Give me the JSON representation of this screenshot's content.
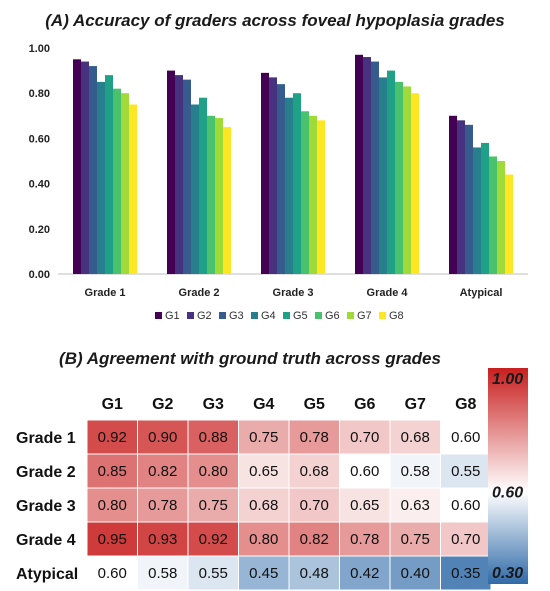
{
  "chart_data": [
    {
      "type": "bar",
      "title": "(A) Accuracy of graders across foveal hypoplasia grades",
      "xlabel": "",
      "ylabel": "",
      "ylim": [
        0,
        1
      ],
      "y_ticks": [
        "0.00",
        "0.20",
        "0.40",
        "0.60",
        "0.80",
        "1.00"
      ],
      "categories": [
        "Grade 1",
        "Grade 2",
        "Grade 3",
        "Grade 4",
        "Atypical"
      ],
      "legend_position": "bottom",
      "grid": false,
      "series": [
        {
          "name": "G1",
          "color": "#440154",
          "values": [
            0.95,
            0.9,
            0.89,
            0.97,
            0.7
          ]
        },
        {
          "name": "G2",
          "color": "#46327e",
          "values": [
            0.94,
            0.88,
            0.87,
            0.96,
            0.68
          ]
        },
        {
          "name": "G3",
          "color": "#365c8d",
          "values": [
            0.92,
            0.86,
            0.84,
            0.94,
            0.66
          ]
        },
        {
          "name": "G4",
          "color": "#277f8e",
          "values": [
            0.85,
            0.75,
            0.78,
            0.87,
            0.56
          ]
        },
        {
          "name": "G5",
          "color": "#1fa187",
          "values": [
            0.88,
            0.78,
            0.8,
            0.9,
            0.58
          ]
        },
        {
          "name": "G6",
          "color": "#4ac16d",
          "values": [
            0.82,
            0.7,
            0.72,
            0.85,
            0.52
          ]
        },
        {
          "name": "G7",
          "color": "#a0da39",
          "values": [
            0.8,
            0.69,
            0.7,
            0.83,
            0.5
          ]
        },
        {
          "name": "G8",
          "color": "#fde725",
          "values": [
            0.75,
            0.65,
            0.68,
            0.8,
            0.44
          ]
        }
      ]
    },
    {
      "type": "heatmap",
      "title": "(B) Agreement with ground truth across grades",
      "columns": [
        "G1",
        "G2",
        "G3",
        "G4",
        "G5",
        "G6",
        "G7",
        "G8"
      ],
      "rows": [
        "Grade 1",
        "Grade 2",
        "Grade 3",
        "Grade 4",
        "Atypical"
      ],
      "values": [
        [
          0.92,
          0.9,
          0.88,
          0.75,
          0.78,
          0.7,
          0.68,
          0.6
        ],
        [
          0.85,
          0.82,
          0.8,
          0.65,
          0.68,
          0.6,
          0.58,
          0.55
        ],
        [
          0.8,
          0.78,
          0.75,
          0.68,
          0.7,
          0.65,
          0.63,
          0.6
        ],
        [
          0.95,
          0.93,
          0.92,
          0.8,
          0.82,
          0.78,
          0.75,
          0.7
        ],
        [
          0.6,
          0.58,
          0.55,
          0.45,
          0.48,
          0.42,
          0.4,
          0.35
        ]
      ],
      "value_labels": [
        [
          "0.92",
          "0.90",
          "0.88",
          "0.75",
          "0.78",
          "0.70",
          "0.68",
          "0.60"
        ],
        [
          "0.85",
          "0.82",
          "0.80",
          "0.65",
          "0.68",
          "0.60",
          "0.58",
          "0.55"
        ],
        [
          "0.80",
          "0.78",
          "0.75",
          "0.68",
          "0.70",
          "0.65",
          "0.63",
          "0.60"
        ],
        [
          "0.95",
          "0.93",
          "0.92",
          "0.80",
          "0.82",
          "0.78",
          "0.75",
          "0.70"
        ],
        [
          "0.60",
          "0.58",
          "0.55",
          "0.45",
          "0.48",
          "0.42",
          "0.40",
          "0.35"
        ]
      ],
      "color_scale": {
        "min": 0.3,
        "mid": 0.6,
        "max": 1.0,
        "min_label": "0.30",
        "mid_label": "0.60",
        "max_label": "1.00",
        "min_color": "#2f6aa8",
        "mid_color": "#ffffff",
        "max_color": "#c81e1e"
      }
    }
  ]
}
